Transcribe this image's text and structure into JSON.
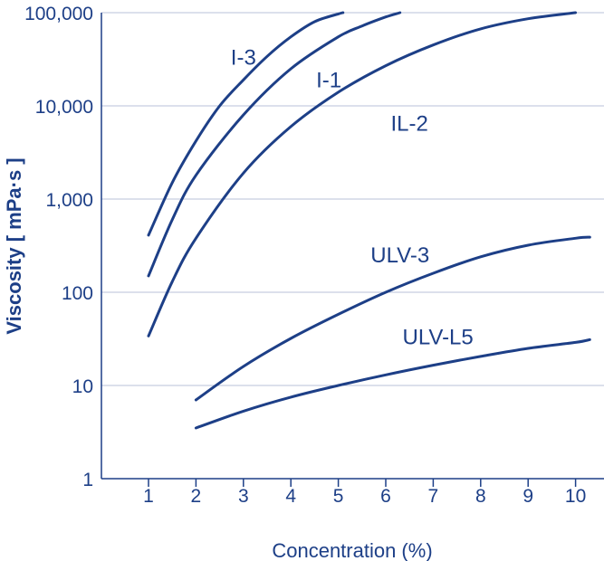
{
  "chart_data": {
    "type": "line",
    "xlabel": "Concentration (%)",
    "ylabel": "Viscosity [ mPa·s ]",
    "xlim": [
      0,
      10.7
    ],
    "ylim": [
      1,
      100000
    ],
    "yscale": "log",
    "grid": "horizontal",
    "x_ticks": [
      "1",
      "2",
      "3",
      "4",
      "5",
      "6",
      "7",
      "8",
      "9",
      "10"
    ],
    "y_ticks": [
      {
        "value": 1,
        "label": "1"
      },
      {
        "value": 10,
        "label": "10"
      },
      {
        "value": 100,
        "label": "100"
      },
      {
        "value": 1000,
        "label": "1,000"
      },
      {
        "value": 10000,
        "label": "10,000"
      },
      {
        "value": 100000,
        "label": "100,000"
      }
    ],
    "series": [
      {
        "name": "I-3",
        "x": [
          1,
          1.5,
          2,
          2.5,
          3,
          3.5,
          4,
          4.5,
          5,
          5.1
        ],
        "y": [
          410,
          1500,
          4200,
          10000,
          19000,
          34000,
          55000,
          80000,
          97000,
          100000
        ]
      },
      {
        "name": "I-1",
        "x": [
          1,
          1.5,
          2,
          3,
          4,
          5,
          5.5,
          6,
          6.3
        ],
        "y": [
          150,
          600,
          1800,
          8000,
          25000,
          55000,
          72000,
          90000,
          100000
        ]
      },
      {
        "name": "IL-2",
        "x": [
          1,
          1.5,
          2,
          3,
          4,
          5,
          6,
          7,
          8,
          9,
          10
        ],
        "y": [
          34,
          130,
          380,
          1900,
          6000,
          14000,
          27000,
          45000,
          67000,
          86000,
          100000
        ]
      },
      {
        "name": "ULV-3",
        "x": [
          2,
          3,
          4,
          5,
          6,
          7,
          8,
          9,
          10,
          10.3
        ],
        "y": [
          7,
          16,
          32,
          58,
          100,
          160,
          240,
          320,
          380,
          390
        ]
      },
      {
        "name": "ULV-L5",
        "x": [
          2,
          3,
          4,
          5,
          6,
          7,
          8,
          9,
          10,
          10.3
        ],
        "y": [
          3.5,
          5.3,
          7.5,
          10,
          13,
          16.5,
          20.5,
          25,
          29,
          31
        ]
      }
    ],
    "label_anchors": [
      {
        "name": "I-3",
        "x": 3.0,
        "y": 33000
      },
      {
        "name": "I-1",
        "x": 4.8,
        "y": 19000
      },
      {
        "name": "IL-2",
        "x": 6.5,
        "y": 6500
      },
      {
        "name": "ULV-3",
        "x": 6.3,
        "y": 250
      },
      {
        "name": "ULV-L5",
        "x": 7.1,
        "y": 33
      }
    ]
  },
  "colors": {
    "primary": "#1d3f87",
    "grid": "#b8c2d8"
  }
}
